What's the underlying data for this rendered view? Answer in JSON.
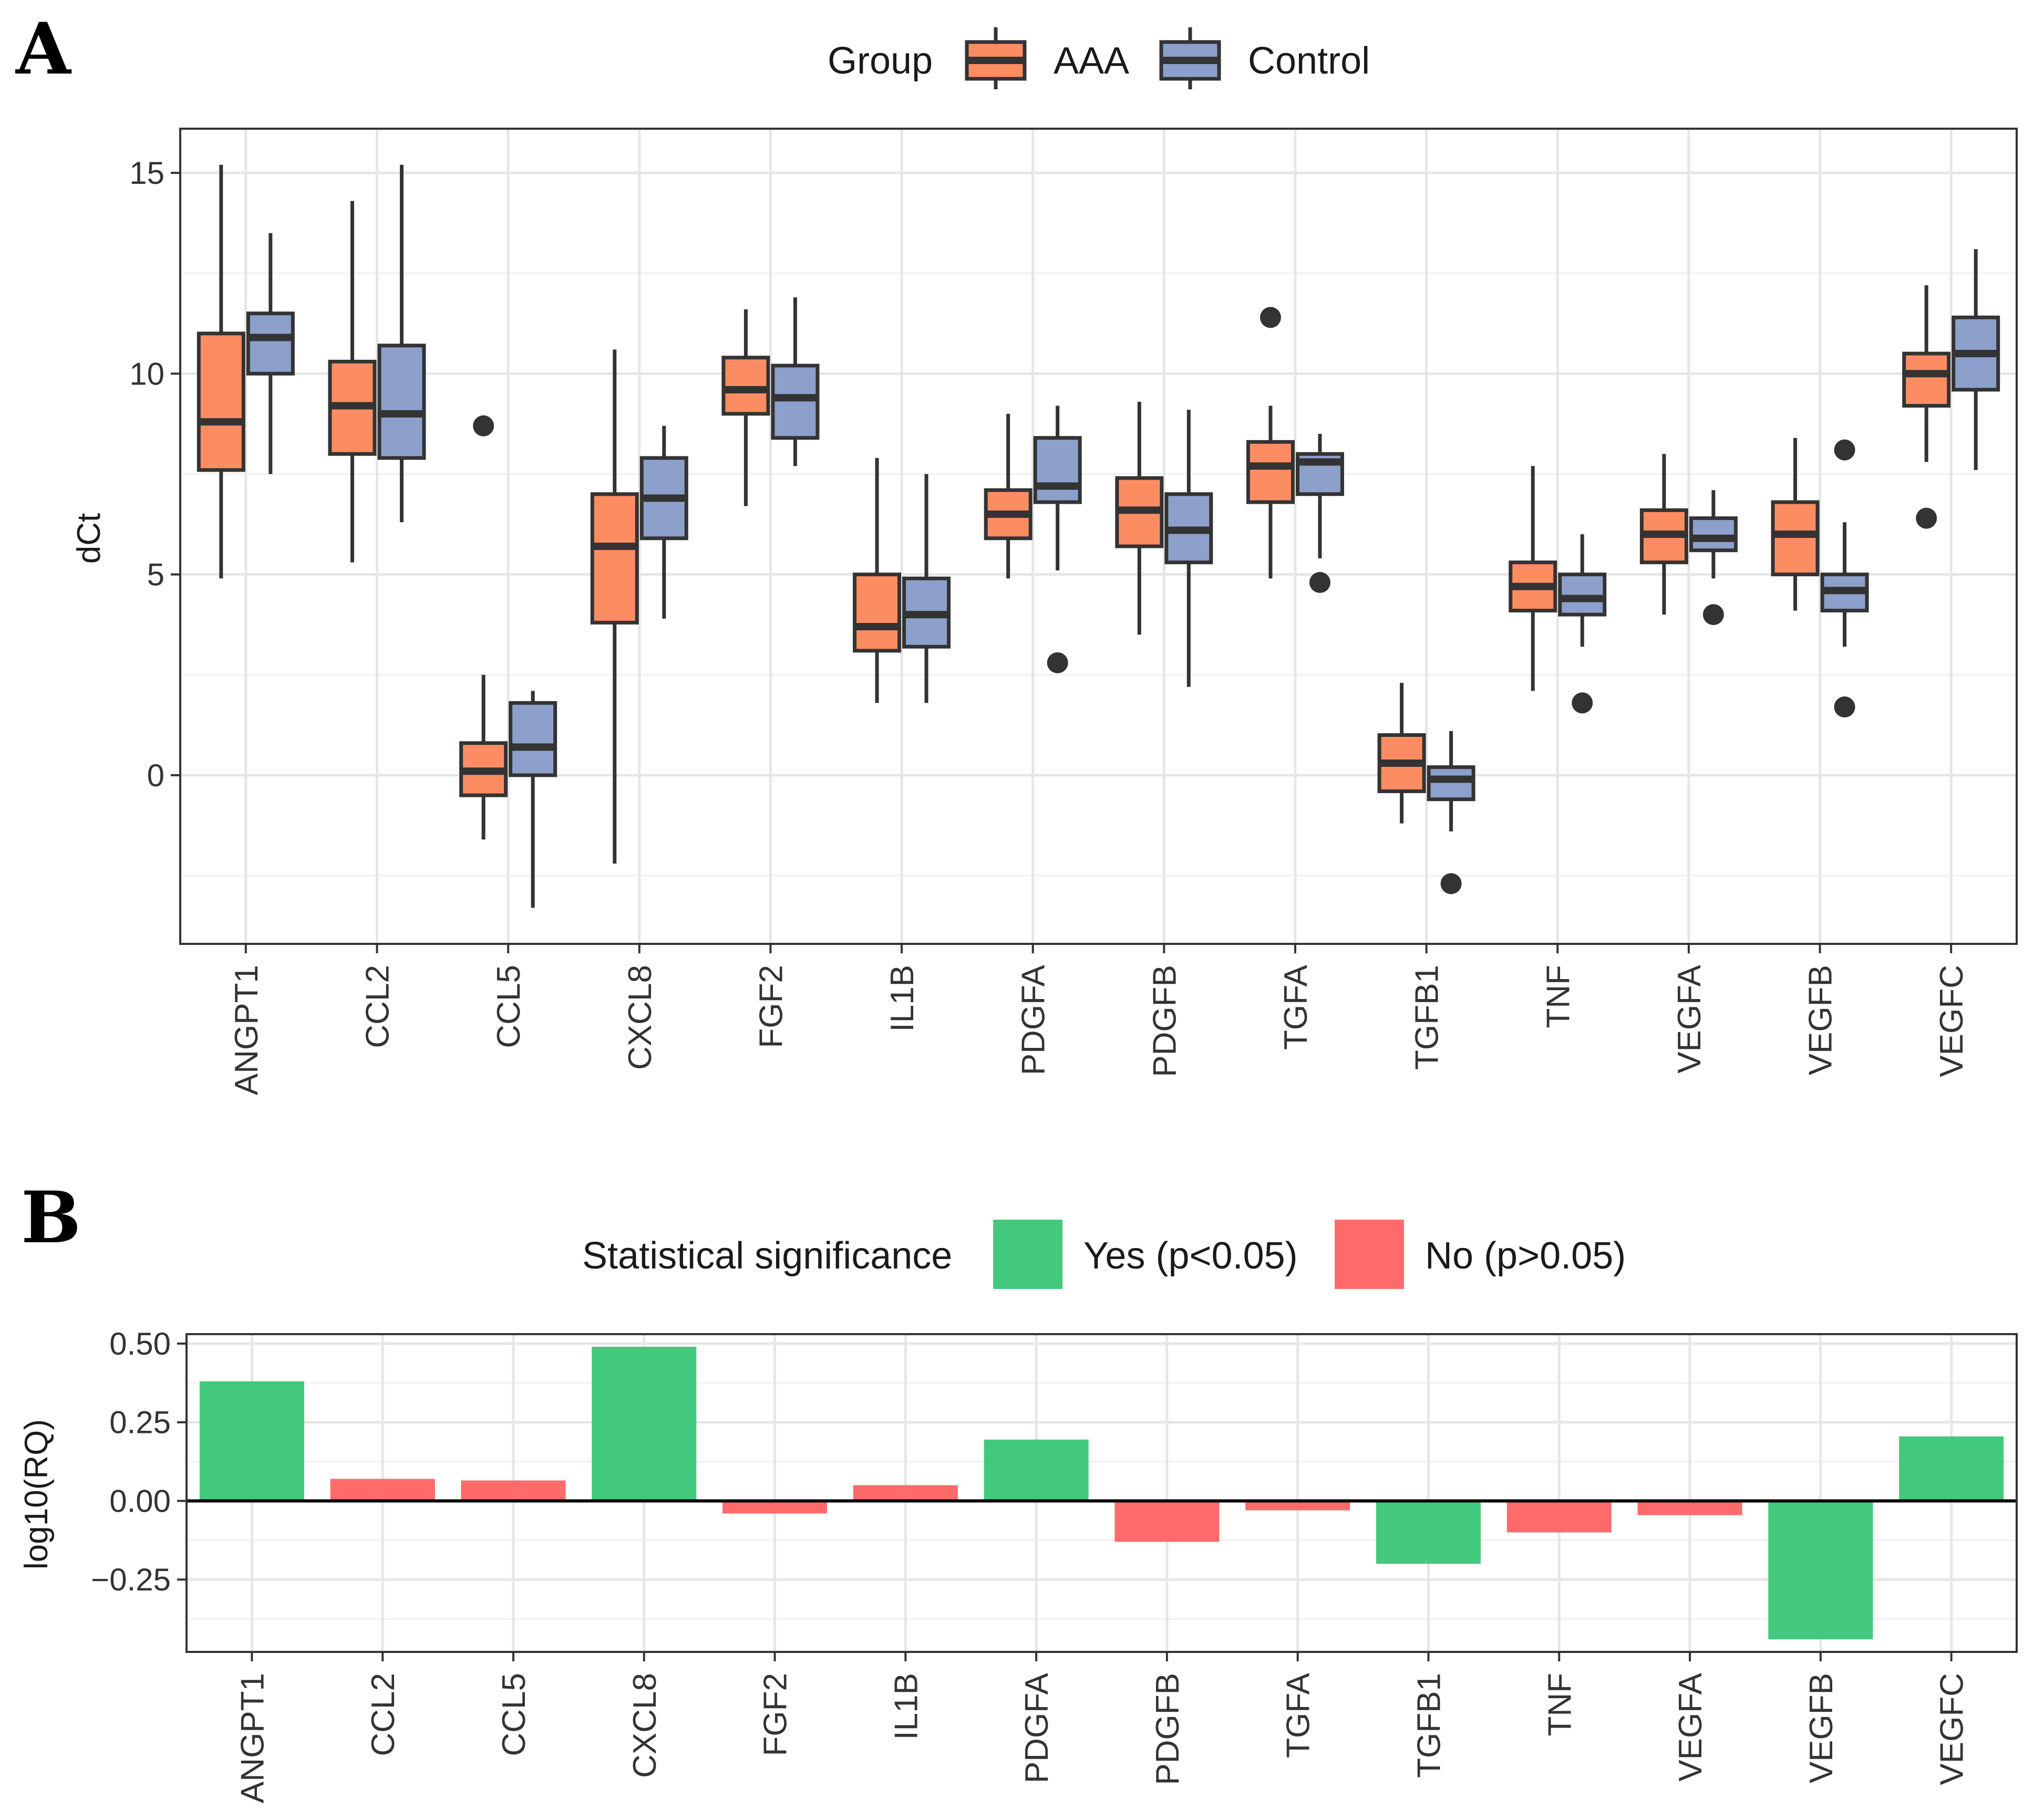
{
  "chart_data": [
    {
      "panel": "A",
      "type": "boxplot",
      "ylabel": "dCt",
      "xlabel": "",
      "ylim": [
        -4.2,
        16.1
      ],
      "yticks": [
        0,
        5,
        10,
        15
      ],
      "legend": {
        "title": "Group",
        "position": "top"
      },
      "categories": [
        "ANGPT1",
        "CCL2",
        "CCL5",
        "CXCL8",
        "FGF2",
        "IL1B",
        "PDGFA",
        "PDGFB",
        "TGFA",
        "TGFB1",
        "TNF",
        "VEGFA",
        "VEGFB",
        "VEGFC"
      ],
      "series": [
        {
          "name": "AAA",
          "color": "#FC8D62",
          "boxes": [
            {
              "wlo": 4.9,
              "q1": 7.6,
              "med": 8.8,
              "q3": 11.0,
              "whi": 15.2,
              "outliers": []
            },
            {
              "wlo": 5.3,
              "q1": 8.0,
              "med": 9.2,
              "q3": 10.3,
              "whi": 14.3,
              "outliers": []
            },
            {
              "wlo": -1.6,
              "q1": -0.5,
              "med": 0.1,
              "q3": 0.8,
              "whi": 2.5,
              "outliers": [
                8.7
              ]
            },
            {
              "wlo": -2.2,
              "q1": 3.8,
              "med": 5.7,
              "q3": 7.0,
              "whi": 10.6,
              "outliers": []
            },
            {
              "wlo": 6.7,
              "q1": 9.0,
              "med": 9.6,
              "q3": 10.4,
              "whi": 11.6,
              "outliers": []
            },
            {
              "wlo": 1.8,
              "q1": 3.1,
              "med": 3.7,
              "q3": 5.0,
              "whi": 7.9,
              "outliers": []
            },
            {
              "wlo": 4.9,
              "q1": 5.9,
              "med": 6.5,
              "q3": 7.1,
              "whi": 9.0,
              "outliers": []
            },
            {
              "wlo": 3.5,
              "q1": 5.7,
              "med": 6.6,
              "q3": 7.4,
              "whi": 9.3,
              "outliers": []
            },
            {
              "wlo": 4.9,
              "q1": 6.8,
              "med": 7.7,
              "q3": 8.3,
              "whi": 9.2,
              "outliers": [
                11.4
              ]
            },
            {
              "wlo": -1.2,
              "q1": -0.4,
              "med": 0.3,
              "q3": 1.0,
              "whi": 2.3,
              "outliers": []
            },
            {
              "wlo": 2.1,
              "q1": 4.1,
              "med": 4.7,
              "q3": 5.3,
              "whi": 7.7,
              "outliers": []
            },
            {
              "wlo": 4.0,
              "q1": 5.3,
              "med": 6.0,
              "q3": 6.6,
              "whi": 8.0,
              "outliers": []
            },
            {
              "wlo": 4.1,
              "q1": 5.0,
              "med": 6.0,
              "q3": 6.8,
              "whi": 8.4,
              "outliers": []
            },
            {
              "wlo": 7.8,
              "q1": 9.2,
              "med": 10.0,
              "q3": 10.5,
              "whi": 12.2,
              "outliers": [
                6.4
              ]
            }
          ]
        },
        {
          "name": "Control",
          "color": "#8DA0CB",
          "boxes": [
            {
              "wlo": 7.5,
              "q1": 10.0,
              "med": 10.9,
              "q3": 11.5,
              "whi": 13.5,
              "outliers": []
            },
            {
              "wlo": 6.3,
              "q1": 7.9,
              "med": 9.0,
              "q3": 10.7,
              "whi": 15.2,
              "outliers": []
            },
            {
              "wlo": -3.3,
              "q1": 0.0,
              "med": 0.7,
              "q3": 1.8,
              "whi": 2.1,
              "outliers": []
            },
            {
              "wlo": 3.9,
              "q1": 5.9,
              "med": 6.9,
              "q3": 7.9,
              "whi": 8.7,
              "outliers": []
            },
            {
              "wlo": 7.7,
              "q1": 8.4,
              "med": 9.4,
              "q3": 10.2,
              "whi": 11.9,
              "outliers": []
            },
            {
              "wlo": 1.8,
              "q1": 3.2,
              "med": 4.0,
              "q3": 4.9,
              "whi": 7.5,
              "outliers": []
            },
            {
              "wlo": 5.1,
              "q1": 6.8,
              "med": 7.2,
              "q3": 8.4,
              "whi": 9.2,
              "outliers": [
                2.8
              ]
            },
            {
              "wlo": 2.2,
              "q1": 5.3,
              "med": 6.1,
              "q3": 7.0,
              "whi": 9.1,
              "outliers": []
            },
            {
              "wlo": 5.4,
              "q1": 7.0,
              "med": 7.8,
              "q3": 8.0,
              "whi": 8.5,
              "outliers": [
                4.8
              ]
            },
            {
              "wlo": -1.4,
              "q1": -0.6,
              "med": -0.1,
              "q3": 0.2,
              "whi": 1.1,
              "outliers": [
                -2.7
              ]
            },
            {
              "wlo": 3.2,
              "q1": 4.0,
              "med": 4.4,
              "q3": 5.0,
              "whi": 6.0,
              "outliers": [
                1.8
              ]
            },
            {
              "wlo": 4.9,
              "q1": 5.6,
              "med": 5.9,
              "q3": 6.4,
              "whi": 7.1,
              "outliers": [
                4.0
              ]
            },
            {
              "wlo": 3.2,
              "q1": 4.1,
              "med": 4.6,
              "q3": 5.0,
              "whi": 6.3,
              "outliers": [
                8.1,
                1.7
              ]
            },
            {
              "wlo": 7.6,
              "q1": 9.6,
              "med": 10.5,
              "q3": 11.4,
              "whi": 13.1,
              "outliers": []
            }
          ]
        }
      ]
    },
    {
      "panel": "B",
      "type": "bar",
      "ylabel": "log10(RQ)",
      "xlabel": "",
      "ylim": [
        -0.48,
        0.53
      ],
      "yticks": [
        0.5,
        0.25,
        0.0,
        -0.25
      ],
      "ytick_labels": [
        "0.50",
        "0.25",
        "0.00",
        "−0.25"
      ],
      "legend": {
        "title": "Statistical significance",
        "position": "top"
      },
      "categories": [
        "ANGPT1",
        "CCL2",
        "CCL5",
        "CXCL8",
        "FGF2",
        "IL1B",
        "PDGFA",
        "PDGFB",
        "TGFA",
        "TGFB1",
        "TNF",
        "VEGFA",
        "VEGFB",
        "VEGFC"
      ],
      "values": [
        0.38,
        0.07,
        0.065,
        0.49,
        -0.04,
        0.05,
        0.195,
        -0.13,
        -0.03,
        -0.2,
        -0.1,
        -0.045,
        -0.44,
        0.205
      ],
      "significant": [
        true,
        false,
        false,
        true,
        false,
        false,
        true,
        false,
        false,
        true,
        false,
        false,
        true,
        true
      ],
      "significance_levels": [
        {
          "key": "yes",
          "label": "Yes (p<0.05)",
          "color": "#43C97E"
        },
        {
          "key": "no",
          "label": "No (p>0.05)",
          "color": "#FF6B6B"
        }
      ]
    }
  ]
}
